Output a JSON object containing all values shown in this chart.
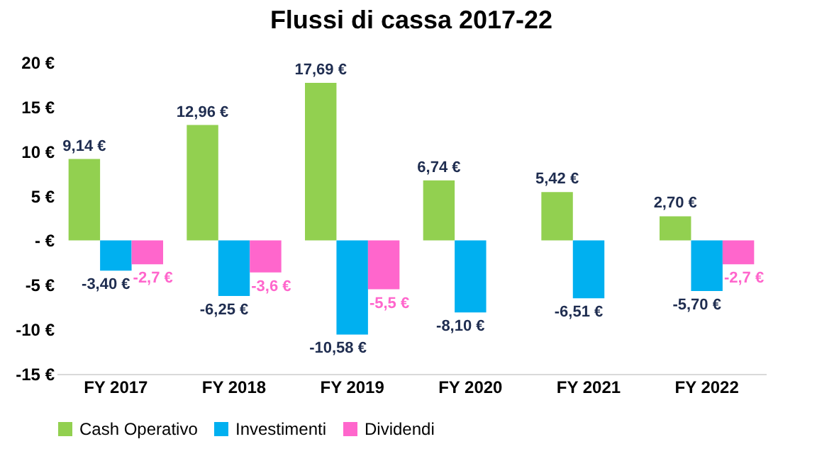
{
  "chart_data": {
    "type": "bar",
    "title": "Flussi di cassa 2017-22",
    "categories": [
      "FY 2017",
      "FY 2018",
      "FY 2019",
      "FY 2020",
      "FY 2021",
      "FY 2022"
    ],
    "series": [
      {
        "name": "Cash Operativo",
        "color": "#92d050",
        "values": [
          9.14,
          12.96,
          17.69,
          6.74,
          5.42,
          2.7
        ],
        "value_labels": [
          "9,14 €",
          "12,96 €",
          "17,69 €",
          "6,74 €",
          "5,42 €",
          "2,70 €"
        ]
      },
      {
        "name": "Investimenti",
        "color": "#00b0f0",
        "values": [
          -3.4,
          -6.25,
          -10.58,
          -8.1,
          -6.51,
          -5.7
        ],
        "value_labels": [
          "-3,40 €",
          "-6,25 €",
          "-10,58 €",
          "-8,10 €",
          "-6,51 €",
          "-5,70 €"
        ]
      },
      {
        "name": "Dividendi",
        "color": "#ff66cc",
        "values": [
          -2.7,
          -3.6,
          -5.5,
          null,
          null,
          -2.7
        ],
        "value_labels": [
          "-2,7 €",
          "-3,6 €",
          "-5,5 €",
          null,
          null,
          "-2,7 €"
        ]
      }
    ],
    "ylim": [
      -15,
      20
    ],
    "yticks": [
      {
        "value": -15,
        "label": "-15 €"
      },
      {
        "value": -10,
        "label": "-10 €"
      },
      {
        "value": -5,
        "label": "-5 €"
      },
      {
        "value": 0,
        "label": "- €"
      },
      {
        "value": 5,
        "label": "5 €"
      },
      {
        "value": 10,
        "label": "10 €"
      },
      {
        "value": 15,
        "label": "15 €"
      },
      {
        "value": 20,
        "label": "20 €"
      }
    ],
    "grid": false,
    "legend": "bottom"
  }
}
